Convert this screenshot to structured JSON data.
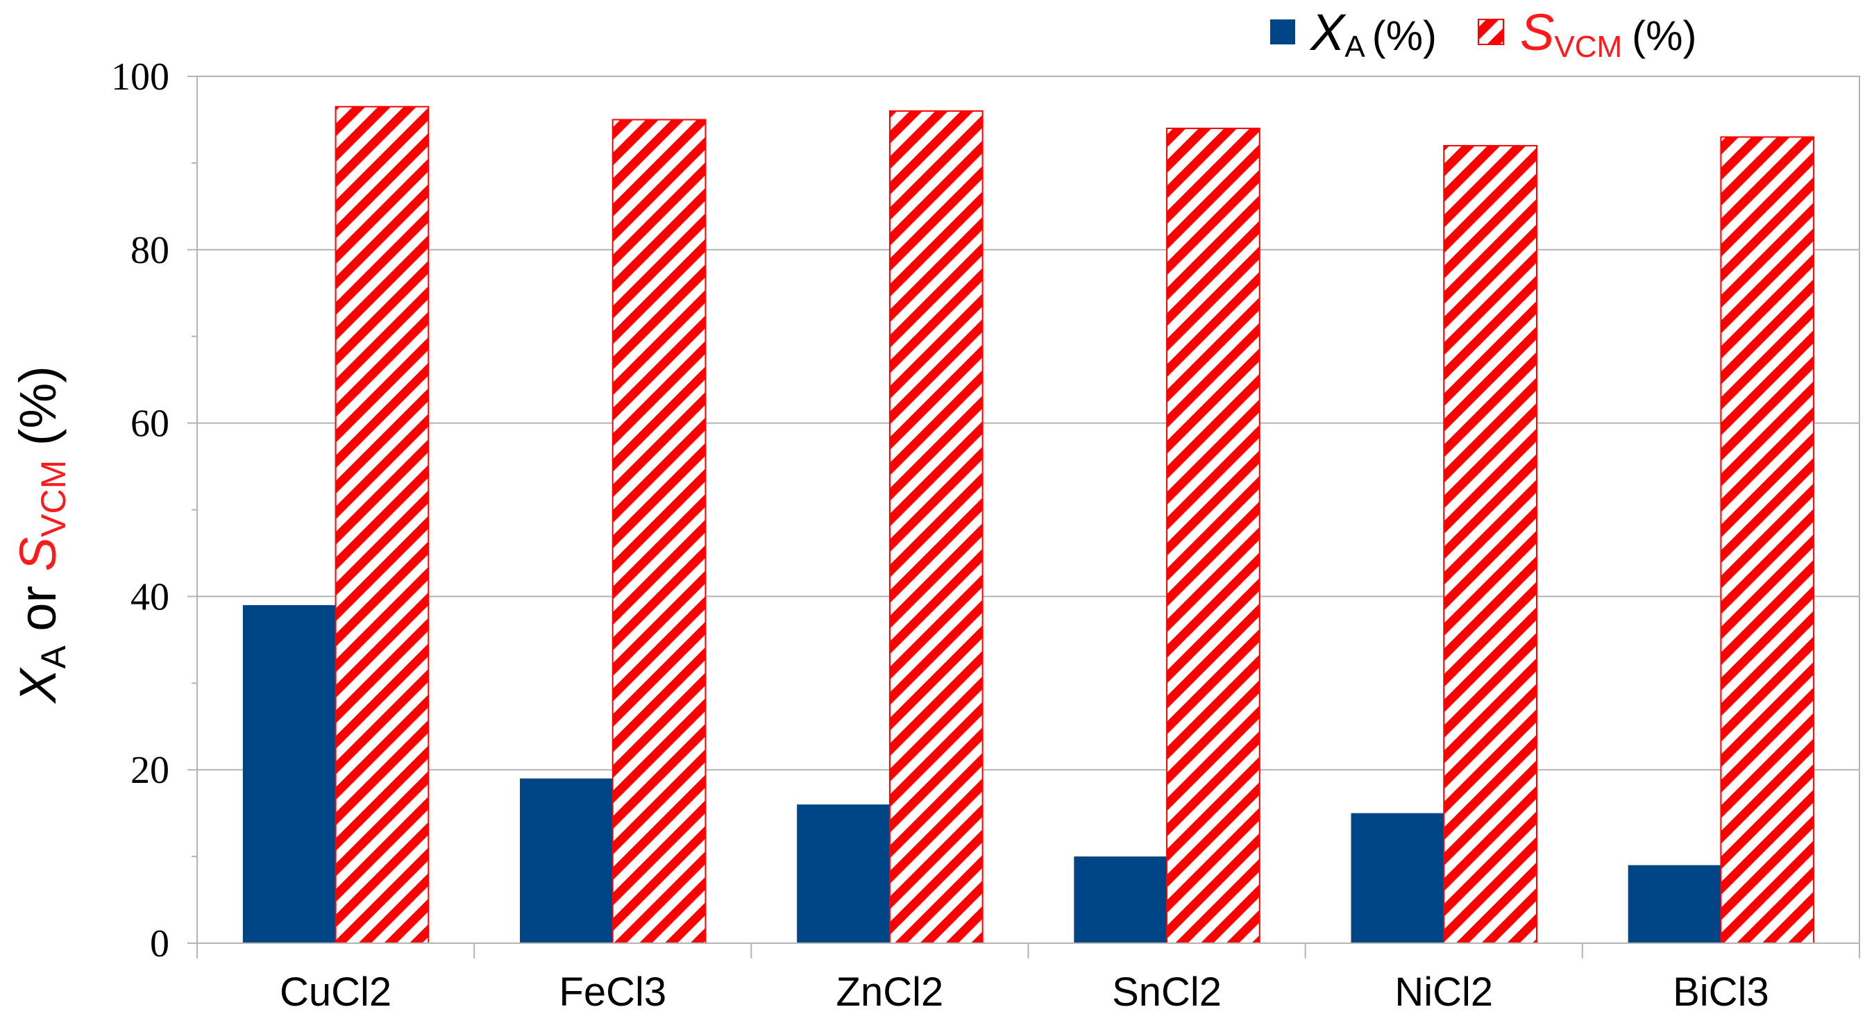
{
  "chart_data": {
    "type": "bar",
    "categories": [
      "CuCl2",
      "FeCl3",
      "ZnCl2",
      "SnCl2",
      "NiCl2",
      "BiCl3"
    ],
    "series": [
      {
        "name": "X_A (%)",
        "symbol": "X",
        "subscript": "A",
        "unit": "(%)",
        "color": "#004586",
        "pattern": "solid",
        "values": [
          39,
          19,
          16,
          10,
          15,
          9
        ]
      },
      {
        "name": "S_VCM (%)",
        "symbol": "S",
        "subscript": "VCM",
        "unit": "(%)",
        "color": "#ff0000",
        "pattern": "diagonal-hatch",
        "values": [
          96.5,
          95,
          96,
          94,
          92,
          93
        ]
      }
    ],
    "ylim": [
      0,
      100
    ],
    "yticks": [
      "0",
      "20",
      "40",
      "60",
      "80",
      "100"
    ],
    "ytick_values": [
      0,
      20,
      40,
      60,
      80,
      100
    ],
    "ylabel": {
      "x_symbol": "X",
      "x_sub": "A",
      "connector": "or",
      "s_symbol": "S",
      "s_sub": "VCM",
      "unit": "(%)"
    },
    "xlabel": "",
    "title": "",
    "grid": "horizontal",
    "legend_position": "top-right"
  }
}
